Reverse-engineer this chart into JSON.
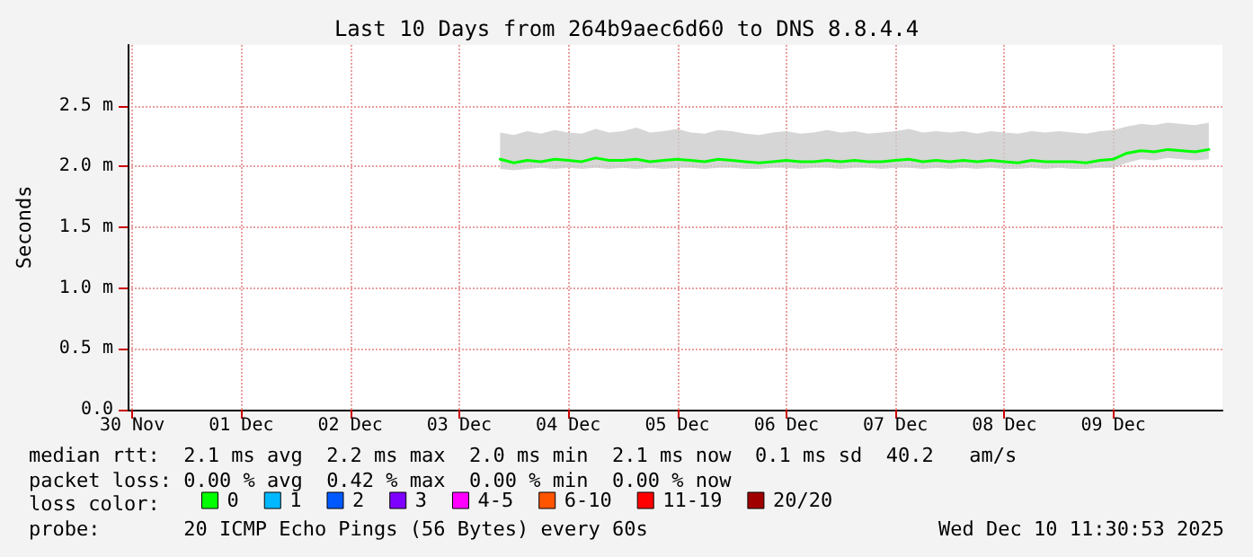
{
  "chart_data": {
    "type": "line",
    "title": "Last 10 Days from 264b9aec6d60 to DNS 8.8.4.4",
    "ylabel": "Seconds",
    "x": [
      "2025-12-03T21:00",
      "2025-12-04T00:00",
      "2025-12-04T03:00",
      "2025-12-04T06:00",
      "2025-12-04T09:00",
      "2025-12-04T12:00",
      "2025-12-04T15:00",
      "2025-12-04T18:00",
      "2025-12-04T21:00",
      "2025-12-05T00:00",
      "2025-12-05T03:00",
      "2025-12-05T06:00",
      "2025-12-05T09:00",
      "2025-12-05T12:00",
      "2025-12-05T15:00",
      "2025-12-05T18:00",
      "2025-12-05T21:00",
      "2025-12-06T00:00",
      "2025-12-06T03:00",
      "2025-12-06T06:00",
      "2025-12-06T09:00",
      "2025-12-06T12:00",
      "2025-12-06T15:00",
      "2025-12-06T18:00",
      "2025-12-06T21:00",
      "2025-12-07T00:00",
      "2025-12-07T03:00",
      "2025-12-07T06:00",
      "2025-12-07T09:00",
      "2025-12-07T12:00",
      "2025-12-07T15:00",
      "2025-12-07T18:00",
      "2025-12-07T21:00",
      "2025-12-08T00:00",
      "2025-12-08T03:00",
      "2025-12-08T06:00",
      "2025-12-08T09:00",
      "2025-12-08T12:00",
      "2025-12-08T15:00",
      "2025-12-08T18:00",
      "2025-12-08T21:00",
      "2025-12-09T00:00",
      "2025-12-09T03:00",
      "2025-12-09T06:00",
      "2025-12-09T09:00",
      "2025-12-09T12:00",
      "2025-12-09T15:00",
      "2025-12-09T18:00",
      "2025-12-09T21:00",
      "2025-12-10T00:00",
      "2025-12-10T03:00",
      "2025-12-10T06:00",
      "2025-12-10T09:00"
    ],
    "series": [
      {
        "name": "0",
        "color": "#00ff00",
        "values": [
          2.06,
          2.03,
          2.05,
          2.04,
          2.06,
          2.05,
          2.04,
          2.07,
          2.05,
          2.05,
          2.06,
          2.04,
          2.05,
          2.06,
          2.05,
          2.04,
          2.06,
          2.05,
          2.04,
          2.03,
          2.04,
          2.05,
          2.04,
          2.04,
          2.05,
          2.04,
          2.05,
          2.04,
          2.04,
          2.05,
          2.06,
          2.04,
          2.05,
          2.04,
          2.05,
          2.04,
          2.05,
          2.04,
          2.03,
          2.05,
          2.04,
          2.04,
          2.04,
          2.03,
          2.05,
          2.06,
          2.11,
          2.13,
          2.12,
          2.14,
          2.13,
          2.12,
          2.14
        ],
        "lower": [
          1.98,
          1.97,
          1.98,
          1.99,
          1.98,
          1.99,
          1.98,
          1.99,
          1.98,
          1.99,
          1.98,
          1.99,
          1.98,
          1.99,
          1.99,
          1.98,
          1.99,
          1.99,
          1.98,
          1.98,
          1.99,
          1.99,
          1.98,
          1.99,
          1.99,
          1.98,
          1.99,
          1.99,
          1.98,
          1.99,
          1.99,
          1.98,
          1.99,
          1.98,
          1.99,
          1.98,
          1.99,
          1.98,
          1.98,
          1.99,
          1.98,
          1.99,
          1.98,
          1.98,
          1.99,
          1.99,
          2.03,
          2.06,
          2.05,
          2.07,
          2.06,
          2.05,
          2.06
        ],
        "upper": [
          2.28,
          2.26,
          2.29,
          2.27,
          2.3,
          2.28,
          2.27,
          2.31,
          2.28,
          2.29,
          2.32,
          2.28,
          2.29,
          2.31,
          2.28,
          2.27,
          2.3,
          2.29,
          2.27,
          2.26,
          2.28,
          2.29,
          2.27,
          2.28,
          2.3,
          2.28,
          2.29,
          2.27,
          2.28,
          2.29,
          2.31,
          2.28,
          2.29,
          2.28,
          2.29,
          2.27,
          2.29,
          2.28,
          2.27,
          2.29,
          2.28,
          2.29,
          2.28,
          2.27,
          2.29,
          2.3,
          2.33,
          2.35,
          2.34,
          2.36,
          2.35,
          2.34,
          2.36
        ]
      },
      {
        "name": "1",
        "color": "#00b8ff",
        "values": [
          null,
          null,
          null,
          null,
          null,
          null,
          null,
          null,
          null,
          null,
          null,
          null,
          null,
          null,
          null,
          null,
          null,
          null,
          null,
          null,
          null,
          null,
          null,
          null,
          null,
          null,
          null,
          null,
          null,
          null,
          null,
          null,
          null,
          null,
          null,
          null,
          null,
          null,
          null,
          null,
          null,
          null,
          null,
          null,
          null,
          null,
          null,
          null,
          null,
          null,
          null,
          null,
          null
        ]
      },
      {
        "name": "2",
        "color": "#0059ff",
        "values": [
          null,
          null,
          null,
          null,
          null,
          null,
          null,
          null,
          null,
          null,
          null,
          null,
          null,
          null,
          null,
          null,
          null,
          null,
          null,
          null,
          null,
          null,
          null,
          null,
          null,
          null,
          null,
          null,
          null,
          null,
          null,
          null,
          null,
          null,
          null,
          null,
          null,
          null,
          null,
          null,
          null,
          null,
          null,
          null,
          null,
          null,
          null,
          null,
          null,
          null,
          null,
          null,
          null
        ]
      },
      {
        "name": "3",
        "color": "#7e00ff",
        "values": [
          null,
          null,
          null,
          null,
          null,
          null,
          null,
          null,
          null,
          null,
          null,
          null,
          null,
          null,
          null,
          null,
          null,
          null,
          null,
          null,
          null,
          null,
          null,
          null,
          null,
          null,
          null,
          null,
          null,
          null,
          null,
          null,
          null,
          null,
          null,
          null,
          null,
          null,
          null,
          null,
          null,
          null,
          null,
          null,
          null,
          null,
          null,
          null,
          null,
          null,
          null,
          null,
          null
        ]
      },
      {
        "name": "4-5",
        "color": "#ff00ff",
        "values": [
          null,
          null,
          null,
          null,
          null,
          null,
          null,
          null,
          null,
          null,
          null,
          null,
          null,
          null,
          null,
          null,
          null,
          null,
          null,
          null,
          null,
          null,
          null,
          null,
          null,
          null,
          null,
          null,
          null,
          null,
          null,
          null,
          null,
          null,
          null,
          null,
          null,
          null,
          null,
          null,
          null,
          null,
          null,
          null,
          null,
          null,
          null,
          null,
          null,
          null,
          null,
          null,
          null
        ]
      },
      {
        "name": "6-10",
        "color": "#ff5500",
        "values": [
          null,
          null,
          null,
          null,
          null,
          null,
          null,
          null,
          null,
          null,
          null,
          null,
          null,
          null,
          null,
          null,
          null,
          null,
          null,
          null,
          null,
          null,
          null,
          null,
          null,
          null,
          null,
          null,
          null,
          null,
          null,
          null,
          null,
          null,
          null,
          null,
          null,
          null,
          null,
          null,
          null,
          null,
          null,
          null,
          null,
          null,
          null,
          null,
          null,
          null,
          null,
          null,
          null
        ]
      },
      {
        "name": "11-19",
        "color": "#ff0000",
        "values": [
          null,
          null,
          null,
          null,
          null,
          null,
          null,
          null,
          null,
          null,
          null,
          null,
          null,
          null,
          null,
          null,
          null,
          null,
          null,
          null,
          null,
          null,
          null,
          null,
          null,
          null,
          null,
          null,
          null,
          null,
          null,
          null,
          null,
          null,
          null,
          null,
          null,
          null,
          null,
          null,
          null,
          null,
          null,
          null,
          null,
          null,
          null,
          null,
          null,
          null,
          null,
          null,
          null
        ]
      },
      {
        "name": "20/20",
        "color": "#a10000",
        "values": [
          null,
          null,
          null,
          null,
          null,
          null,
          null,
          null,
          null,
          null,
          null,
          null,
          null,
          null,
          null,
          null,
          null,
          null,
          null,
          null,
          null,
          null,
          null,
          null,
          null,
          null,
          null,
          null,
          null,
          null,
          null,
          null,
          null,
          null,
          null,
          null,
          null,
          null,
          null,
          null,
          null,
          null,
          null,
          null,
          null,
          null,
          null,
          null,
          null,
          null,
          null,
          null,
          null
        ]
      }
    ],
    "legend_title": "loss color:",
    "legend": "bottom",
    "xlim": [
      "2025-11-30T11:00",
      "2025-12-10T12:00"
    ],
    "xticks": [
      {
        "value": "2025-11-30T12:00",
        "label": "30 Nov"
      },
      {
        "value": "2025-12-01T12:00",
        "label": "01 Dec"
      },
      {
        "value": "2025-12-02T12:00",
        "label": "02 Dec"
      },
      {
        "value": "2025-12-03T12:00",
        "label": "03 Dec"
      },
      {
        "value": "2025-12-04T12:00",
        "label": "04 Dec"
      },
      {
        "value": "2025-12-05T12:00",
        "label": "05 Dec"
      },
      {
        "value": "2025-12-06T12:00",
        "label": "06 Dec"
      },
      {
        "value": "2025-12-07T12:00",
        "label": "07 Dec"
      },
      {
        "value": "2025-12-08T12:00",
        "label": "08 Dec"
      },
      {
        "value": "2025-12-09T12:00",
        "label": "09 Dec"
      }
    ],
    "ylim": [
      0,
      3
    ],
    "yticks": [
      {
        "value": 0,
        "label": "0.0"
      },
      {
        "value": 0.5,
        "label": "0.5 m"
      },
      {
        "value": 1,
        "label": "1.0 m"
      },
      {
        "value": 1.5,
        "label": "1.5 m"
      },
      {
        "value": 2,
        "label": "2.0 m"
      },
      {
        "value": 2.5,
        "label": "2.5 m"
      }
    ],
    "grid": true,
    "marker": "none",
    "line_style": "solid",
    "annotations": [
      "median rtt:  2.1 ms avg  2.2 ms max  2.0 ms min  2.1 ms now  0.1 ms sd  40.2   am/s",
      "packet loss: 0.00 % avg  0.42 % max  0.00 % min  0.00 % now",
      "probe:       20 ICMP Echo Pings (56 Bytes) every 60s",
      "Wed Dec 10 11:30:53 2025"
    ]
  }
}
